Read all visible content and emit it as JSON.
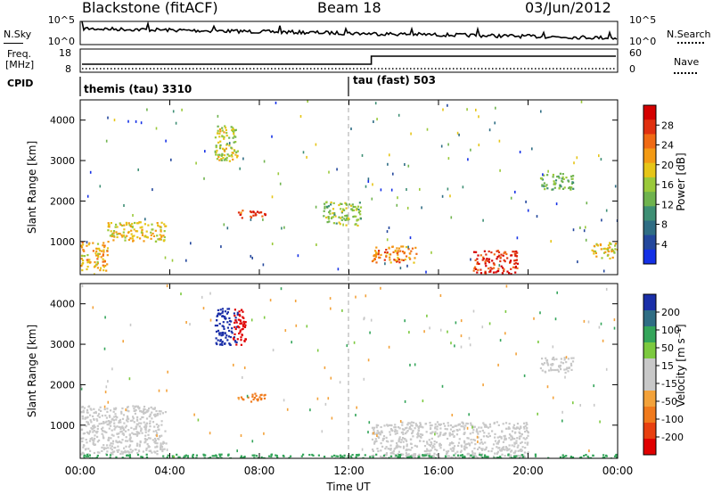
{
  "header": {
    "title": "Blackstone (fitACF)",
    "beam": "Beam 18",
    "date": "03/Jun/2012"
  },
  "aux": {
    "nsky_label": "N.Sky",
    "nsky_ticks": [
      "10^5",
      "10^0"
    ],
    "nsearch_label": "N.Search",
    "nsearch_ticks": [
      "10^5",
      "10^0"
    ],
    "freq_label": "Freq.",
    "freq_unit": "[MHz]",
    "freq_ticks": [
      "18",
      "8"
    ],
    "nave_label": "Nave",
    "nave_ticks": [
      "60",
      "0"
    ],
    "cpid_label": "CPID",
    "cpid_segments": [
      {
        "name": "themis (tau) 3310",
        "start_hour": 0
      },
      {
        "name": "tau (fast) 503",
        "start_hour": 12.0
      }
    ],
    "freq_step": {
      "before_hour": 13.0,
      "low_mhz": 10.5,
      "high_mhz": 13.5
    }
  },
  "chart_data": [
    {
      "type": "heatmap",
      "title": "",
      "xlabel": "",
      "ylabel": "Slant Range [km]",
      "xlim": [
        0,
        24
      ],
      "ylim": [
        180,
        4500
      ],
      "yticks": [
        "1000",
        "2000",
        "3000",
        "4000"
      ],
      "colorbar": {
        "label": "Power [dB]",
        "ticks": [
          "4",
          "8",
          "12",
          "16",
          "20",
          "24",
          "28"
        ],
        "range": [
          0,
          30
        ],
        "colors": [
          "#1430e6",
          "#23479c",
          "#2f6d84",
          "#3e8f74",
          "#6fb34e",
          "#9ac93a",
          "#e6c517",
          "#f39a14",
          "#f06a14",
          "#e03010",
          "#d40000"
        ]
      },
      "features": [
        {
          "hours": [
            0.0,
            1.2
          ],
          "range_km": [
            300,
            1000
          ],
          "level_db": 20
        },
        {
          "hours": [
            1.2,
            3.8
          ],
          "range_km": [
            1000,
            1500
          ],
          "level_db": 18
        },
        {
          "hours": [
            6.0,
            7.0
          ],
          "range_km": [
            3000,
            3900
          ],
          "level_db": 16
        },
        {
          "hours": [
            7.0,
            8.3
          ],
          "range_km": [
            1600,
            1800
          ],
          "level_db": 26
        },
        {
          "hours": [
            10.8,
            12.5
          ],
          "range_km": [
            1400,
            2000
          ],
          "level_db": 14
        },
        {
          "hours": [
            13.0,
            15.0
          ],
          "range_km": [
            500,
            900
          ],
          "level_db": 22
        },
        {
          "hours": [
            17.5,
            19.5
          ],
          "range_km": [
            180,
            800
          ],
          "level_db": 28
        },
        {
          "hours": [
            20.5,
            22.0
          ],
          "range_km": [
            2300,
            2700
          ],
          "level_db": 12
        },
        {
          "hours": [
            22.8,
            24.0
          ],
          "range_km": [
            600,
            1000
          ],
          "level_db": 18
        }
      ]
    },
    {
      "type": "heatmap",
      "title": "",
      "xlabel": "Time UT",
      "ylabel": "Slant Range [km]",
      "xlim": [
        0,
        24
      ],
      "ylim": [
        180,
        4500
      ],
      "xticks": [
        "00:00",
        "04:00",
        "08:00",
        "12:00",
        "16:00",
        "20:00",
        "00:00"
      ],
      "yticks": [
        "1000",
        "2000",
        "3000",
        "4000"
      ],
      "colorbar": {
        "label": "Velocity [m s⁻¹]",
        "ticks": [
          "200",
          "100",
          "50",
          "15",
          "-15",
          "-50",
          "-100",
          "-200"
        ],
        "colors": [
          "#1a2fa8",
          "#2f6d84",
          "#34a55a",
          "#7cc93f",
          "#c8c8c8",
          "#c8c8c8",
          "#f3a23a",
          "#f07a1c",
          "#e84010",
          "#e00000"
        ]
      },
      "features": [
        {
          "hours": [
            0.0,
            3.8
          ],
          "range_km": [
            300,
            1500
          ],
          "velocity": 0
        },
        {
          "hours": [
            6.0,
            7.0
          ],
          "range_km": [
            3000,
            3900
          ],
          "velocity": 200
        },
        {
          "hours": [
            6.8,
            7.4
          ],
          "range_km": [
            3000,
            3900
          ],
          "velocity": -200
        },
        {
          "hours": [
            7.0,
            8.3
          ],
          "range_km": [
            1600,
            1800
          ],
          "velocity": -80
        },
        {
          "hours": [
            13.0,
            20.0
          ],
          "range_km": [
            200,
            1100
          ],
          "velocity": 0
        },
        {
          "hours": [
            20.5,
            22.0
          ],
          "range_km": [
            2300,
            2700
          ],
          "velocity": 0
        },
        {
          "hours": [
            0.0,
            24.0
          ],
          "range_km": [
            180,
            300
          ],
          "velocity": 40
        }
      ]
    }
  ]
}
